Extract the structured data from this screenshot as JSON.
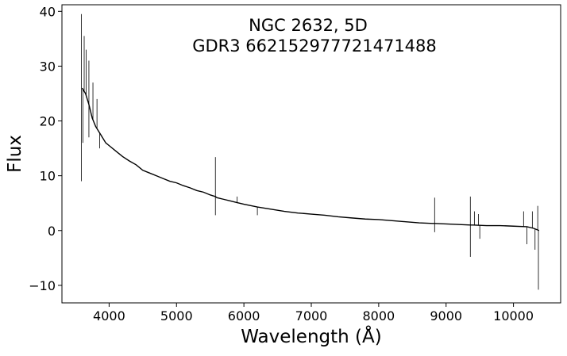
{
  "chart_data": {
    "type": "line",
    "title_lines": [
      "NGC 2632, 5D",
      "GDR3 662152977721471488"
    ],
    "xlabel": "Wavelength (Å)",
    "ylabel": "Flux",
    "xlim": [
      3300,
      10700
    ],
    "ylim": [
      -13.2,
      41.2
    ],
    "xticks": [
      4000,
      5000,
      6000,
      7000,
      8000,
      9000,
      10000
    ],
    "xtick_labels": [
      "4000",
      "5000",
      "6000",
      "7000",
      "8000",
      "9000",
      "10000"
    ],
    "yticks": [
      -10,
      0,
      10,
      20,
      30,
      40
    ],
    "ytick_labels": [
      "−10",
      "0",
      "10",
      "20",
      "30",
      "40"
    ],
    "grid": false,
    "series": [
      {
        "color": "#000000",
        "x": [
          3600,
          3650,
          3700,
          3750,
          3800,
          3850,
          3900,
          3950,
          4000,
          4100,
          4200,
          4300,
          4400,
          4500,
          4600,
          4700,
          4800,
          4900,
          5000,
          5100,
          5200,
          5300,
          5400,
          5500,
          5577,
          5600,
          5700,
          5800,
          5900,
          6000,
          6200,
          6400,
          6600,
          6800,
          7000,
          7200,
          7400,
          7600,
          7800,
          8000,
          8200,
          8400,
          8600,
          8800,
          8830,
          9000,
          9200,
          9360,
          9400,
          9600,
          9800,
          10000,
          10200,
          10300,
          10380
        ],
        "y": [
          26,
          25,
          23,
          20.5,
          19,
          18,
          17,
          16,
          15.5,
          14.5,
          13.5,
          12.7,
          12,
          11,
          10.5,
          10,
          9.5,
          9,
          8.7,
          8.2,
          7.8,
          7.3,
          7,
          6.5,
          6.2,
          6,
          5.7,
          5.4,
          5.1,
          4.8,
          4.3,
          3.9,
          3.5,
          3.2,
          3,
          2.8,
          2.5,
          2.3,
          2.1,
          2,
          1.8,
          1.6,
          1.4,
          1.3,
          1.3,
          1.2,
          1.1,
          1,
          1,
          0.9,
          0.9,
          0.8,
          0.7,
          0.4,
          0
        ]
      }
    ],
    "spikes": [
      {
        "x": 3590,
        "y": 39.5
      },
      {
        "x": 3590,
        "y": 9
      },
      {
        "x": 3630,
        "y": 35.5
      },
      {
        "x": 3610,
        "y": 16
      },
      {
        "x": 3660,
        "y": 33
      },
      {
        "x": 3700,
        "y": 31
      },
      {
        "x": 3760,
        "y": 27
      },
      {
        "x": 3820,
        "y": 24
      },
      {
        "x": 3700,
        "y": 17
      },
      {
        "x": 3860,
        "y": 15
      },
      {
        "x": 5577,
        "y": 13.4
      },
      {
        "x": 5577,
        "y": 2.8
      },
      {
        "x": 5900,
        "y": 6.2
      },
      {
        "x": 6200,
        "y": 2.8
      },
      {
        "x": 8830,
        "y": 6
      },
      {
        "x": 8830,
        "y": -0.3
      },
      {
        "x": 9360,
        "y": 6.2
      },
      {
        "x": 9360,
        "y": -4.8
      },
      {
        "x": 9420,
        "y": 3.5
      },
      {
        "x": 9480,
        "y": 3
      },
      {
        "x": 9500,
        "y": -1.5
      },
      {
        "x": 10150,
        "y": 3.5
      },
      {
        "x": 10200,
        "y": -2.5
      },
      {
        "x": 10280,
        "y": 3.5
      },
      {
        "x": 10320,
        "y": -3.5
      },
      {
        "x": 10360,
        "y": 4.5
      },
      {
        "x": 10370,
        "y": -10.8
      }
    ]
  }
}
